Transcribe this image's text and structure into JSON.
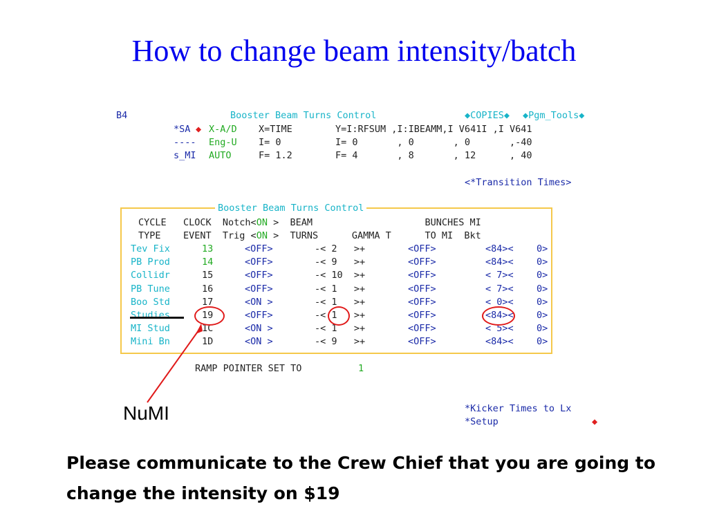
{
  "slide": {
    "title": "How to change beam intensity/batch",
    "annotation_label": "NuMI",
    "message": "Please communicate to the Crew Chief that you are going to change the intensity on $19"
  },
  "header": {
    "page_id": "B4",
    "app_title": "Booster Beam Turns Control",
    "menu_left": "◆COPIES◆",
    "menu_right": "◆Pgm_Tools◆",
    "row1": {
      "c1": "*SA",
      "diamond": "◆",
      "c2": "X-A/D",
      "c3": "X=TIME",
      "c4": "Y=I:RFSUM ,I:IBEAMM,I V641I ,I V641"
    },
    "row2": {
      "c1": "----",
      "c2": "Eng-U",
      "c3": "I= 0",
      "c4": "I= 0       , 0       , 0       ,-40"
    },
    "row3": {
      "c1": "s_MI",
      "c2": "AUTO",
      "c3": "F= 1.2",
      "c4": "F= 4       , 8       , 12      , 40"
    },
    "transition_times": "<*Transition Times>"
  },
  "panel": {
    "title": "Booster Beam Turns Control",
    "header_row1": {
      "a": "CYCLE   CLOCK  Notch<",
      "on": "ON",
      "b": " >  BEAM                    BUNCHES MI"
    },
    "header_row2": {
      "a": "TYPE    EVENT  Trig <",
      "on": "ON",
      "b": " >  TURNS      GAMMA T      TO MI  Bkt"
    },
    "columns": [
      "CYCLE TYPE",
      "CLOCK EVENT",
      "Notch Trig",
      "BEAM TURNS",
      "GAMMA T",
      "BUNCHES TO MI",
      "MI Bkt"
    ],
    "rows": [
      {
        "type": "Tev Fix",
        "event": "13",
        "notch": "<OFF>",
        "turns": "-< 2   >+",
        "gamma": "<OFF>",
        "bunches": "<84><",
        "bkt": "0>"
      },
      {
        "type": "PB Prod",
        "event": "14",
        "notch": "<OFF>",
        "turns": "-< 9   >+",
        "gamma": "<OFF>",
        "bunches": "<84><",
        "bkt": "0>"
      },
      {
        "type": "Collidr",
        "event": "15",
        "notch": "<OFF>",
        "turns": "-< 10  >+",
        "gamma": "<OFF>",
        "bunches": "< 7><",
        "bkt": "0>"
      },
      {
        "type": "PB Tune",
        "event": "16",
        "notch": "<OFF>",
        "turns": "-< 1   >+",
        "gamma": "<OFF>",
        "bunches": "< 7><",
        "bkt": "0>"
      },
      {
        "type": "Boo Std",
        "event": "17",
        "notch": "<ON >",
        "turns": "-< 1   >+",
        "gamma": "<OFF>",
        "bunches": "< 0><",
        "bkt": "0>"
      },
      {
        "type": "Studies",
        "event": "19",
        "notch": "<OFF>",
        "turns": "-< 1   >+",
        "gamma": "<OFF>",
        "bunches": "<84><",
        "bkt": "0>"
      },
      {
        "type": "MI Stud",
        "event": "1C",
        "notch": "<ON >",
        "turns": "-< 1   >+",
        "gamma": "<OFF>",
        "bunches": "< 5><",
        "bkt": "0>"
      },
      {
        "type": "Mini Bn",
        "event": "1D",
        "notch": "<ON >",
        "turns": "-< 9   >+",
        "gamma": "<OFF>",
        "bunches": "<84><",
        "bkt": "0>"
      }
    ]
  },
  "ramp": {
    "label": "RAMP POINTER SET TO",
    "value": "1"
  },
  "footer_links": {
    "kicker": "*Kicker Times to Lx",
    "setup": "*Setup",
    "setup_diamond": "◆"
  },
  "colors": {
    "title": "#0000ee",
    "navy": "#1a2aa8",
    "cyan": "#18b4c8",
    "green": "#22aa22",
    "highlight": "#e01a1a",
    "box": "#f5c84a"
  }
}
